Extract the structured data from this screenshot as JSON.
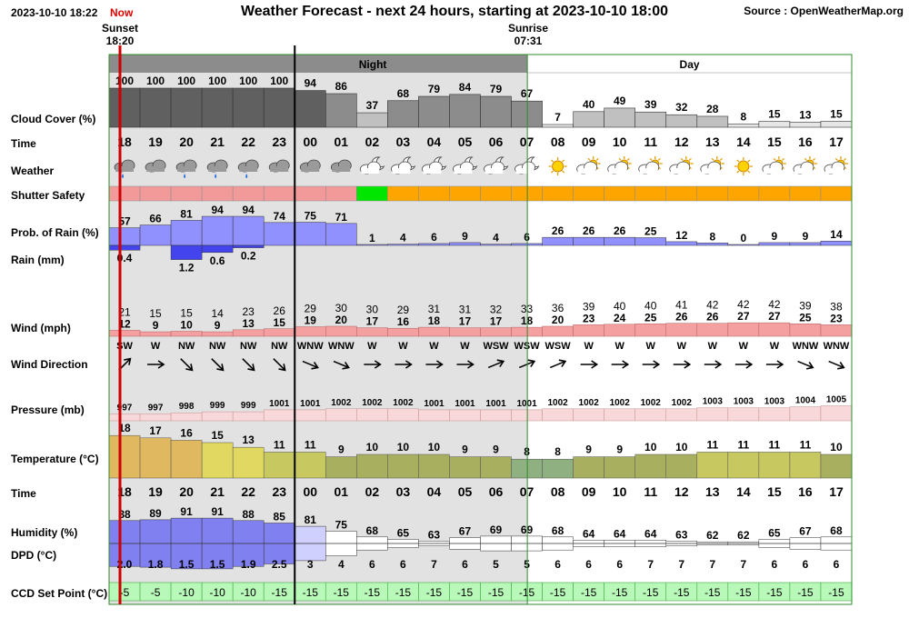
{
  "header": {
    "datetime": "2023-10-10 18:22",
    "now_label": "Now",
    "title": "Weather Forecast - next 24 hours, starting at 2023-10-10 18:00",
    "source": "Source : OpenWeatherMap.org"
  },
  "sun": {
    "sunset_label": "Sunset",
    "sunset_time": "18:20",
    "sunrise_label": "Sunrise",
    "sunrise_time": "07:31"
  },
  "period_labels": {
    "night": "Night",
    "day": "Day"
  },
  "row_labels": {
    "cloud": "Cloud Cover (%)",
    "time": "Time",
    "weather": "Weather",
    "shutter": "Shutter Safety",
    "rain_prob": "Prob. of Rain (%)",
    "rain_mm": "Rain (mm)",
    "wind": "Wind (mph)",
    "wind_dir": "Wind Direction",
    "pressure": "Pressure (mb)",
    "temperature": "Temperature (°C)",
    "time2": "Time",
    "humidity": "Humidity (%)",
    "dpd": "DPD (°C)",
    "ccd": "CCD Set Point (°C)"
  },
  "colors": {
    "night_bg": "#e2e2e2",
    "night_bar": "#8c8c8c",
    "day_border": "#2e8b2e",
    "now_line": "#cc0000",
    "cloud_dark": "#606060",
    "cloud_mid": "#8c8c8c",
    "cloud_light": "#c0c0c0",
    "cloud_pale": "#e6e6e6",
    "shutter_unsafe": "#f29a9a",
    "shutter_safe": "#00e600",
    "shutter_caution": "#ffa500",
    "rain_bar": "#9090ff",
    "rain_mm_bar": "#4444ee",
    "wind_bar": "#f4a0a0",
    "pressure_bar": "#f8d8d8",
    "humidity_bar": "#8080f0",
    "ccd_bg": "#b8f8b8"
  },
  "chart_data": {
    "type": "table",
    "hours": [
      "18",
      "19",
      "20",
      "21",
      "22",
      "23",
      "00",
      "01",
      "02",
      "03",
      "04",
      "05",
      "06",
      "07",
      "08",
      "09",
      "10",
      "11",
      "12",
      "13",
      "14",
      "15",
      "16",
      "17"
    ],
    "cloud_cover": [
      100,
      100,
      100,
      100,
      100,
      100,
      94,
      86,
      37,
      68,
      79,
      84,
      79,
      67,
      7,
      40,
      49,
      39,
      32,
      28,
      8,
      15,
      13,
      15
    ],
    "weather_icons": [
      "cloud-rain-icon",
      "cloud-icon",
      "cloud-rain-icon",
      "cloud-rain-icon",
      "cloud-rain-icon",
      "cloud-icon",
      "cloud-icon",
      "cloud-icon",
      "moon-cloud-icon",
      "moon-cloud-icon",
      "moon-cloud-icon",
      "moon-cloud-icon",
      "moon-cloud-icon",
      "moon-cloud-icon",
      "sun-icon",
      "sun-cloud-icon",
      "sun-cloud-icon",
      "sun-cloud-icon",
      "sun-cloud-icon",
      "sun-cloud-icon",
      "sun-icon",
      "sun-cloud-icon",
      "sun-cloud-icon",
      "sun-cloud-icon"
    ],
    "shutter_safety": [
      "unsafe",
      "unsafe",
      "unsafe",
      "unsafe",
      "unsafe",
      "unsafe",
      "unsafe",
      "unsafe",
      "safe",
      "caution",
      "caution",
      "caution",
      "caution",
      "caution",
      "caution",
      "caution",
      "caution",
      "caution",
      "caution",
      "caution",
      "caution",
      "caution",
      "caution",
      "caution"
    ],
    "rain_probability": [
      57,
      66,
      81,
      94,
      94,
      74,
      75,
      71,
      1,
      4,
      6,
      9,
      4,
      6,
      26,
      26,
      26,
      25,
      12,
      8,
      0,
      9,
      9,
      14
    ],
    "rain_mm": [
      0.4,
      null,
      1.2,
      0.6,
      0.2,
      null,
      null,
      null,
      null,
      null,
      null,
      null,
      null,
      null,
      null,
      null,
      null,
      null,
      null,
      null,
      null,
      null,
      null,
      null
    ],
    "wind_gust": [
      21,
      15,
      15,
      14,
      23,
      26,
      29,
      30,
      30,
      29,
      31,
      31,
      32,
      33,
      36,
      39,
      40,
      40,
      41,
      42,
      42,
      42,
      39,
      38
    ],
    "wind_speed": [
      12,
      9,
      10,
      9,
      13,
      15,
      19,
      20,
      17,
      16,
      18,
      17,
      17,
      18,
      20,
      23,
      24,
      25,
      26,
      26,
      27,
      27,
      25,
      23
    ],
    "wind_direction": [
      "SW",
      "W",
      "NW",
      "NW",
      "NW",
      "NW",
      "WNW",
      "WNW",
      "W",
      "W",
      "W",
      "W",
      "WSW",
      "WSW",
      "WSW",
      "W",
      "W",
      "W",
      "W",
      "W",
      "W",
      "W",
      "WNW",
      "WNW"
    ],
    "pressure": [
      997,
      997,
      998,
      999,
      999,
      1001,
      1001,
      1002,
      1002,
      1002,
      1001,
      1001,
      1001,
      1001,
      1002,
      1002,
      1002,
      1002,
      1002,
      1003,
      1003,
      1003,
      1004,
      1005
    ],
    "temperature": [
      18,
      17,
      16,
      15,
      13,
      11,
      11,
      9,
      10,
      10,
      10,
      9,
      9,
      8,
      8,
      9,
      9,
      10,
      10,
      11,
      11,
      11,
      11,
      10
    ],
    "humidity": [
      88,
      89,
      91,
      91,
      88,
      85,
      81,
      75,
      68,
      65,
      63,
      67,
      69,
      69,
      68,
      64,
      64,
      64,
      63,
      62,
      62,
      65,
      67,
      68
    ],
    "dpd": [
      2.0,
      1.8,
      1.5,
      1.5,
      1.9,
      2.5,
      3,
      4,
      6,
      6,
      7,
      6,
      5,
      5,
      6,
      6,
      6,
      7,
      7,
      7,
      7,
      6,
      6,
      6
    ],
    "ccd_set_point": [
      -5,
      -5,
      -10,
      -10,
      -10,
      -15,
      -15,
      -15,
      -15,
      -15,
      -15,
      -15,
      -15,
      -15,
      -15,
      -15,
      -15,
      -15,
      -15,
      -15,
      -15,
      -15,
      -15,
      -15
    ]
  }
}
